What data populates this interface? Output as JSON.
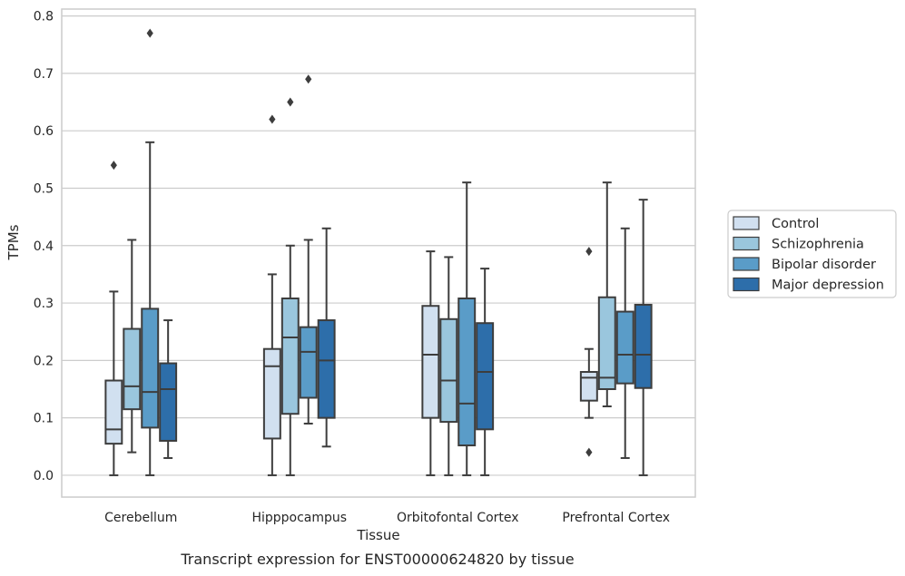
{
  "chart_data": {
    "type": "boxplot",
    "title": "",
    "caption": "Transcript expression for ENST00000624820 by tissue",
    "xlabel": "Tissue",
    "ylabel": "TPMs",
    "ylim": [
      -0.038,
      0.812
    ],
    "yticks": [
      0.0,
      0.1,
      0.2,
      0.3,
      0.4,
      0.5,
      0.6,
      0.7,
      0.8
    ],
    "ytick_labels": [
      "0.0",
      "0.1",
      "0.2",
      "0.3",
      "0.4",
      "0.5",
      "0.6",
      "0.7",
      "0.8"
    ],
    "grid": "horizontal",
    "legend_position": "outside-right",
    "categories": [
      "Cerebellum",
      "Hipppocampus",
      "Orbitofontal Cortex",
      "Prefrontal Cortex"
    ],
    "series": [
      {
        "name": "Control",
        "color": "#d1e0f0",
        "boxes": [
          {
            "whislo": 0.0,
            "q1": 0.055,
            "med": 0.08,
            "q3": 0.165,
            "whishi": 0.32,
            "fliers": [
              0.54
            ]
          },
          {
            "whislo": 0.0,
            "q1": 0.064,
            "med": 0.19,
            "q3": 0.22,
            "whishi": 0.35,
            "fliers": [
              0.62
            ]
          },
          {
            "whislo": 0.0,
            "q1": 0.1,
            "med": 0.21,
            "q3": 0.295,
            "whishi": 0.39,
            "fliers": []
          },
          {
            "whislo": 0.1,
            "q1": 0.13,
            "med": 0.17,
            "q3": 0.18,
            "whishi": 0.22,
            "fliers": [
              0.39,
              0.04
            ]
          }
        ]
      },
      {
        "name": "Schizophrenia",
        "color": "#9ac6dd",
        "boxes": [
          {
            "whislo": 0.04,
            "q1": 0.115,
            "med": 0.155,
            "q3": 0.255,
            "whishi": 0.41,
            "fliers": []
          },
          {
            "whislo": 0.0,
            "q1": 0.107,
            "med": 0.24,
            "q3": 0.308,
            "whishi": 0.4,
            "fliers": [
              0.65
            ]
          },
          {
            "whislo": 0.0,
            "q1": 0.093,
            "med": 0.165,
            "q3": 0.272,
            "whishi": 0.38,
            "fliers": []
          },
          {
            "whislo": 0.12,
            "q1": 0.15,
            "med": 0.17,
            "q3": 0.31,
            "whishi": 0.51,
            "fliers": []
          }
        ]
      },
      {
        "name": "Bipolar disorder",
        "color": "#5a9cc8",
        "boxes": [
          {
            "whislo": 0.0,
            "q1": 0.083,
            "med": 0.145,
            "q3": 0.29,
            "whishi": 0.58,
            "fliers": [
              0.77
            ]
          },
          {
            "whislo": 0.09,
            "q1": 0.135,
            "med": 0.215,
            "q3": 0.258,
            "whishi": 0.41,
            "fliers": [
              0.69
            ]
          },
          {
            "whislo": 0.0,
            "q1": 0.052,
            "med": 0.125,
            "q3": 0.308,
            "whishi": 0.51,
            "fliers": []
          },
          {
            "whislo": 0.03,
            "q1": 0.16,
            "med": 0.21,
            "q3": 0.285,
            "whishi": 0.43,
            "fliers": []
          }
        ]
      },
      {
        "name": "Major depression",
        "color": "#2d6eaa",
        "boxes": [
          {
            "whislo": 0.03,
            "q1": 0.06,
            "med": 0.15,
            "q3": 0.195,
            "whishi": 0.27,
            "fliers": []
          },
          {
            "whislo": 0.05,
            "q1": 0.1,
            "med": 0.2,
            "q3": 0.27,
            "whishi": 0.43,
            "fliers": []
          },
          {
            "whislo": 0.0,
            "q1": 0.08,
            "med": 0.18,
            "q3": 0.265,
            "whishi": 0.36,
            "fliers": []
          },
          {
            "whislo": 0.0,
            "q1": 0.152,
            "med": 0.21,
            "q3": 0.297,
            "whishi": 0.48,
            "fliers": []
          }
        ]
      }
    ]
  }
}
